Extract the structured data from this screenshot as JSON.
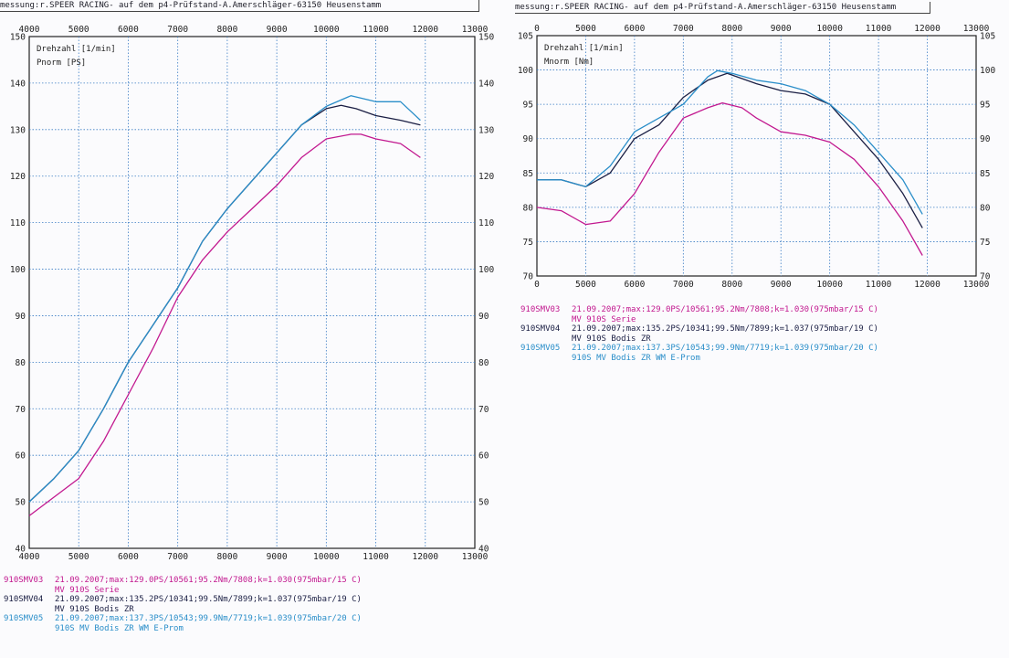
{
  "colors": {
    "serie": "#c2188f",
    "zr": "#1b1f44",
    "eprom": "#2a8ec9",
    "grid": "#3a7cc4",
    "axis": "#222"
  },
  "left": {
    "header": "messung:r.SPEER RACING- auf dem p4-Prüfstand-A.Amerschläger-63150 Heusenstamm",
    "legend": [
      {
        "id": "910SMV03",
        "line": "21.09.2007;max:129.0PS/10561;95.2Nm/7808;k=1.030(975mbar/15 C)",
        "desc": "MV 910S Serie",
        "color": "#c2188f"
      },
      {
        "id": "910SMV04",
        "line": "21.09.2007;max:135.2PS/10341;99.5Nm/7899;k=1.037(975mbar/19 C)",
        "desc": "MV 910S Bodis ZR",
        "color": "#1b1f44"
      },
      {
        "id": "910SMV05",
        "line": "21.09.2007;max:137.3PS/10543;99.9Nm/7719;k=1.039(975mbar/20 C)",
        "desc": "910S MV Bodis ZR WM E-Prom",
        "color": "#2a8ec9"
      }
    ]
  },
  "right": {
    "header": "messung:r.SPEER RACING- auf dem p4-Prüfstand-A.Amerschläger-63150 Heusenstamm",
    "legend": [
      {
        "id": "910SMV03",
        "line": "21.09.2007;max:129.0PS/10561;95.2Nm/7808;k=1.030(975mbar/15 C)",
        "desc": "MV 910S Serie",
        "color": "#c2188f"
      },
      {
        "id": "910SMV04",
        "line": "21.09.2007;max:135.2PS/10341;99.5Nm/7899;k=1.037(975mbar/19 C)",
        "desc": "MV 910S Bodis ZR",
        "color": "#1b1f44"
      },
      {
        "id": "910SMV05",
        "line": "21.09.2007;max:137.3PS/10543;99.9Nm/7719;k=1.039(975mbar/20 C)",
        "desc": "910S MV Bodis ZR WM E-Prom",
        "color": "#2a8ec9"
      }
    ]
  },
  "chart_data": [
    {
      "type": "line",
      "xlabel": "Drehzahl [1/min]",
      "ylabel": "Pnorm [PS]",
      "xlim": [
        4000,
        13000
      ],
      "ylim": [
        40,
        150
      ],
      "x_ticks": [
        4000,
        5000,
        6000,
        7000,
        8000,
        9000,
        10000,
        11000,
        12000,
        13000
      ],
      "y_ticks": [
        40,
        50,
        60,
        70,
        80,
        90,
        100,
        110,
        120,
        130,
        140,
        150
      ],
      "grid": true,
      "series": [
        {
          "name": "910SMV03",
          "color": "#c2188f",
          "x": [
            4000,
            4500,
            5000,
            5500,
            6000,
            6500,
            7000,
            7500,
            8000,
            8500,
            9000,
            9500,
            10000,
            10500,
            10700,
            11000,
            11500,
            11900
          ],
          "y": [
            47,
            51,
            55,
            63,
            73,
            83,
            94,
            102,
            108,
            113,
            118,
            124,
            128,
            129,
            129,
            128,
            127,
            124
          ]
        },
        {
          "name": "910SMV04",
          "color": "#1b1f44",
          "x": [
            4000,
            4500,
            5000,
            5500,
            6000,
            6500,
            7000,
            7500,
            8000,
            8500,
            9000,
            9500,
            10000,
            10300,
            10600,
            11000,
            11500,
            11900
          ],
          "y": [
            50,
            55,
            61,
            70,
            80,
            88,
            96,
            106,
            113,
            119,
            125,
            131,
            134.5,
            135.2,
            134.5,
            133,
            132,
            131
          ]
        },
        {
          "name": "910SMV05",
          "color": "#2a8ec9",
          "x": [
            4000,
            4500,
            5000,
            5500,
            6000,
            6500,
            7000,
            7500,
            8000,
            8500,
            9000,
            9500,
            10000,
            10500,
            11000,
            11500,
            11900
          ],
          "y": [
            50,
            55,
            61,
            70,
            80,
            88,
            96,
            106,
            113,
            119,
            125,
            131,
            135,
            137.3,
            136,
            136,
            132
          ]
        }
      ]
    },
    {
      "type": "line",
      "xlabel": "Drehzahl [1/min]",
      "ylabel": "Mnorm [Nm]",
      "xlim": [
        0,
        13000
      ],
      "ylim": [
        70,
        105
      ],
      "x_ticks": [
        0,
        5000,
        6000,
        7000,
        8000,
        9000,
        10000,
        11000,
        12000,
        13000
      ],
      "y_ticks": [
        70,
        75,
        80,
        85,
        90,
        95,
        100,
        105
      ],
      "grid": true,
      "series": [
        {
          "name": "910SMV03",
          "color": "#c2188f",
          "x": [
            4000,
            4500,
            5000,
            5500,
            6000,
            6500,
            7000,
            7500,
            7800,
            8200,
            8500,
            9000,
            9500,
            10000,
            10500,
            11000,
            11500,
            11900
          ],
          "y": [
            80,
            79.5,
            77.5,
            78,
            82,
            88,
            93,
            94.5,
            95.2,
            94.5,
            93,
            91,
            90.5,
            89.5,
            87,
            83,
            78,
            73
          ]
        },
        {
          "name": "910SMV04",
          "color": "#1b1f44",
          "x": [
            4000,
            4500,
            5000,
            5500,
            6000,
            6500,
            7000,
            7500,
            7900,
            8500,
            9000,
            9500,
            10000,
            10500,
            11000,
            11500,
            11900
          ],
          "y": [
            84,
            84,
            83,
            85,
            90,
            92,
            96,
            98.5,
            99.5,
            98,
            97,
            96.5,
            95,
            91,
            87,
            82,
            77
          ]
        },
        {
          "name": "910SMV05",
          "color": "#2a8ec9",
          "x": [
            4000,
            4500,
            5000,
            5500,
            6000,
            6500,
            7000,
            7500,
            7700,
            8000,
            8500,
            9000,
            9500,
            10000,
            10500,
            11000,
            11500,
            11900
          ],
          "y": [
            84,
            84,
            83,
            86,
            91,
            93,
            95,
            99,
            99.9,
            99.5,
            98.5,
            98,
            97,
            95,
            92,
            88,
            84,
            79
          ]
        }
      ]
    }
  ]
}
